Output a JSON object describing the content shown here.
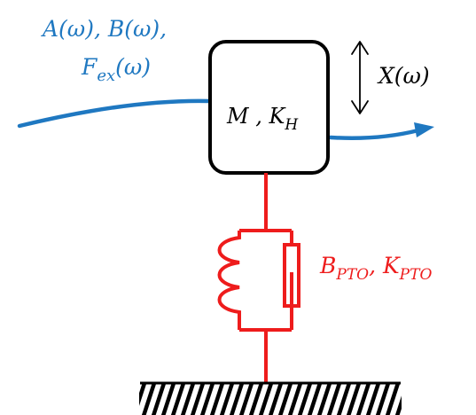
{
  "colors": {
    "wave": "#1f78c1",
    "pto": "#ee1c1c",
    "ink": "#000000"
  },
  "labels": {
    "hydro_line1": {
      "text": "A(ω), B(ω),"
    },
    "hydro_line2": {
      "main": "F",
      "sub": "ex",
      "tail": "(ω)"
    },
    "mass": {
      "main": "M , K",
      "sub": "H"
    },
    "motion": {
      "text": "X(ω)"
    },
    "pto": {
      "main1": "B",
      "sub1": "PTO",
      "sep": ", K",
      "sub2": "PTO"
    }
  },
  "icons": {
    "motion_arrow": "double-headed-vertical-arrow-icon",
    "wave_arrow": "arrow-head-icon",
    "ground": "hatched-ground-icon"
  }
}
